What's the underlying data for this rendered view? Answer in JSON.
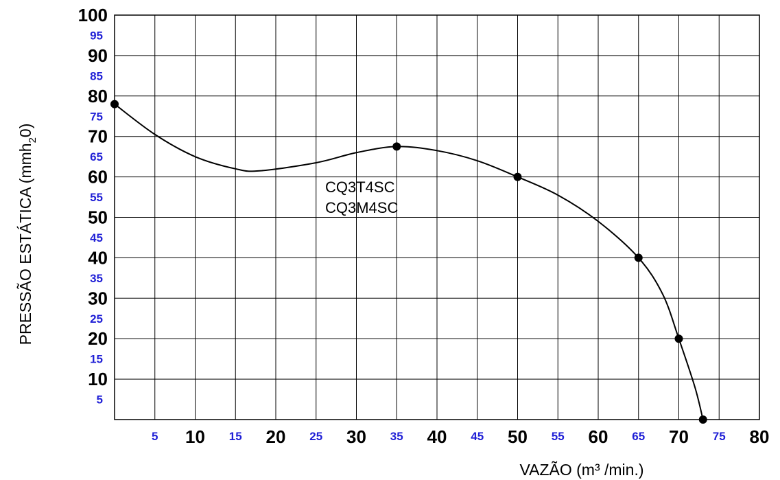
{
  "chart_data": {
    "type": "line",
    "xlabel": "VAZÃO (m³ /min.)",
    "ylabel": "PRESSÃO ESTÁTICA (mmh",
    "ylabel_sub": "2",
    "ylabel_end": "0)",
    "xlim": [
      0,
      80
    ],
    "ylim": [
      0,
      100
    ],
    "grid": true,
    "legend": "none",
    "x_ticks_major": [
      "10",
      "20",
      "30",
      "40",
      "50",
      "60",
      "70",
      "80"
    ],
    "x_ticks_minor": [
      "5",
      "15",
      "25",
      "35",
      "45",
      "55",
      "65",
      "75"
    ],
    "y_ticks_major": [
      "10",
      "20",
      "30",
      "40",
      "50",
      "60",
      "70",
      "80",
      "90",
      "100"
    ],
    "y_ticks_minor": [
      "5",
      "15",
      "25",
      "35",
      "45",
      "55",
      "65",
      "75",
      "85",
      "95"
    ],
    "annotation": [
      "CQ3T4SC",
      "CQ3M4SC"
    ],
    "series": [
      {
        "x": [
          0,
          35,
          50,
          65,
          70,
          73
        ],
        "y": [
          78,
          67.5,
          60,
          40,
          20,
          0
        ],
        "curve_x": [
          0,
          5,
          10,
          15,
          18,
          25,
          30,
          35,
          40,
          45,
          50,
          55,
          60,
          65,
          68,
          70,
          72,
          73
        ],
        "curve_y": [
          78,
          70.5,
          65,
          62,
          61.5,
          63.5,
          66,
          67.5,
          66.5,
          64,
          60,
          55.5,
          49,
          40,
          31,
          20,
          8,
          0
        ]
      }
    ],
    "colors": {
      "major": "#000000",
      "minor": "#1f1fd6",
      "grid": "#000000",
      "line": "#000000"
    }
  }
}
